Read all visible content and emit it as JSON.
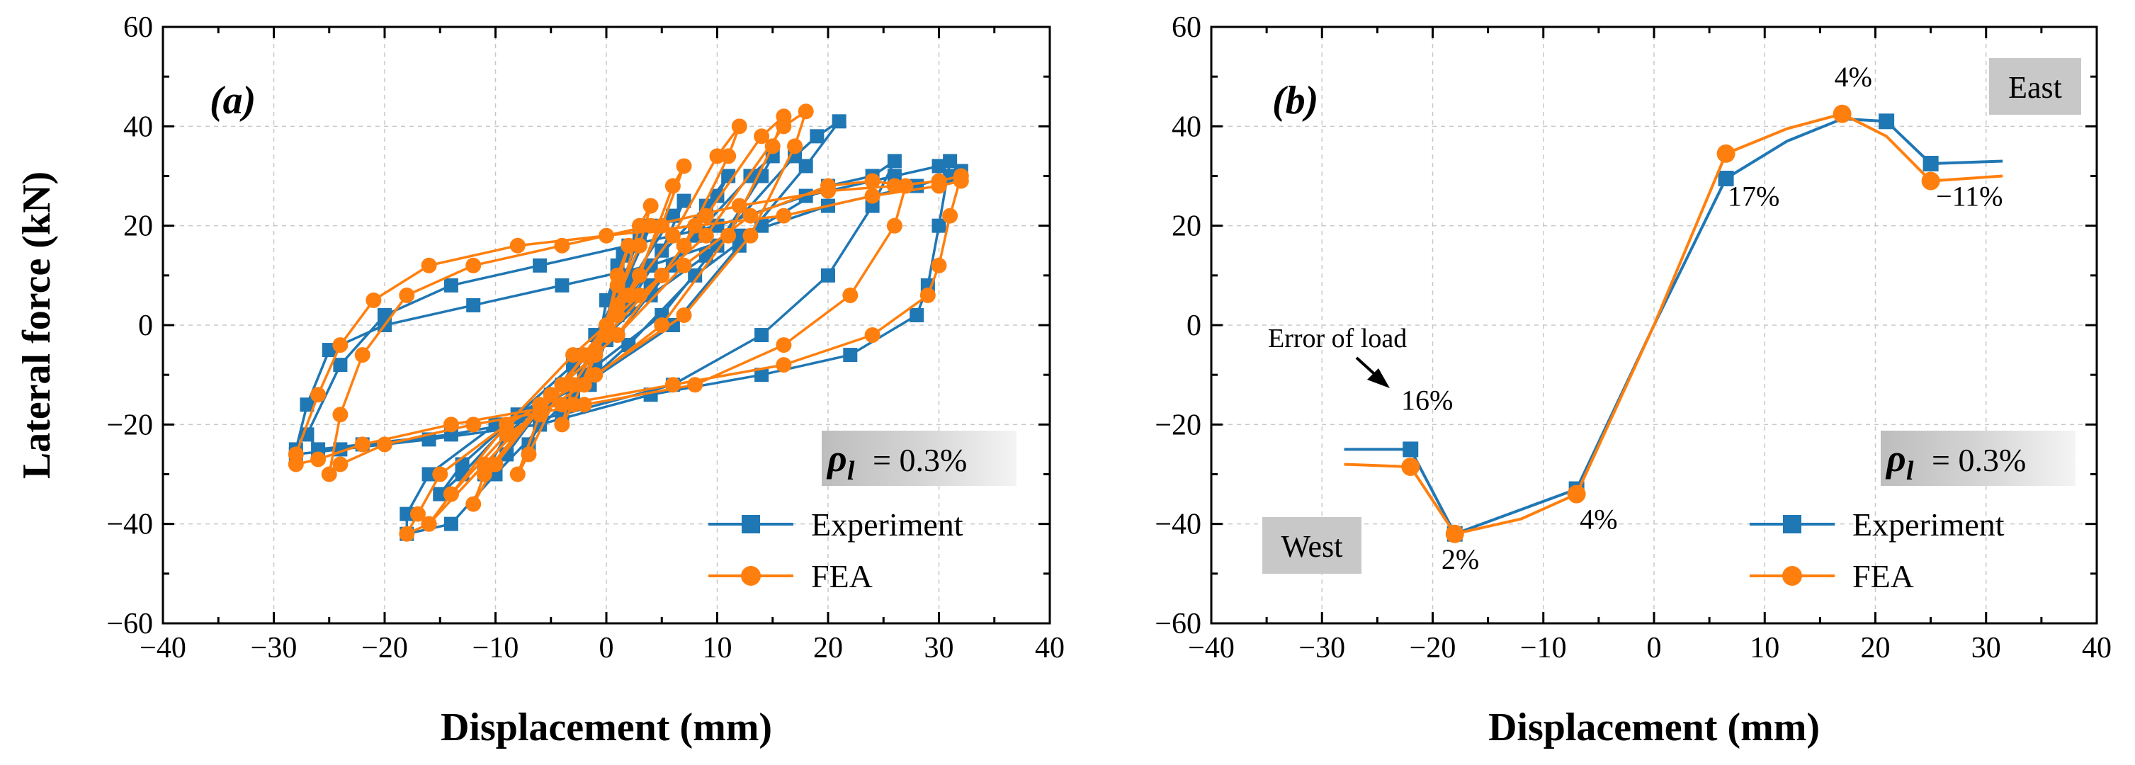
{
  "colors": {
    "experiment": "#1f77b4",
    "fea": "#ff7f0e",
    "label_box": "#c8c8c8"
  },
  "chart_data": [
    {
      "type": "line",
      "panel_label": "(a)",
      "subtype": "hysteresis",
      "xlabel": "Displacement (mm)",
      "ylabel": "Lateral force (kN)",
      "xlim": [
        -40,
        40
      ],
      "ylim": [
        -60,
        60
      ],
      "xticks": [
        "−40",
        "−30",
        "−20",
        "−10",
        "0",
        "10",
        "20",
        "30",
        "40"
      ],
      "yticks": [
        "60",
        "40",
        "20",
        "0",
        "−20",
        "−40",
        "−60"
      ],
      "grid": true,
      "rho_label": {
        "symbol": "ρ",
        "subscript": "l",
        "value": " = 0.3%"
      },
      "legend": {
        "position": "bottom-right",
        "entries": [
          "Experiment",
          "FEA"
        ]
      },
      "series": [
        {
          "name": "Experiment",
          "marker": "square",
          "points": [
            [
              0,
              0
            ],
            [
              1,
              12
            ],
            [
              1.5,
              14
            ],
            [
              0,
              5
            ],
            [
              -1,
              -8
            ],
            [
              -1.5,
              -12
            ],
            [
              0,
              -3
            ],
            [
              1,
              6
            ],
            [
              3,
              18
            ],
            [
              4,
              20
            ],
            [
              2,
              10
            ],
            [
              -1,
              -2
            ],
            [
              -3,
              -14
            ],
            [
              -4,
              -18
            ],
            [
              -2,
              -10
            ],
            [
              0,
              -2
            ],
            [
              2,
              8
            ],
            [
              6,
              22
            ],
            [
              7,
              25
            ],
            [
              5,
              15
            ],
            [
              2,
              4
            ],
            [
              -3,
              -8
            ],
            [
              -6,
              -20
            ],
            [
              -7,
              -24
            ],
            [
              -5,
              -15
            ],
            [
              -2,
              -6
            ],
            [
              1,
              2
            ],
            [
              4,
              12
            ],
            [
              9,
              24
            ],
            [
              11,
              30
            ],
            [
              10,
              26
            ],
            [
              6,
              12
            ],
            [
              1,
              -2
            ],
            [
              -4,
              -12
            ],
            [
              -9,
              -22
            ],
            [
              -11,
              -30
            ],
            [
              -9,
              -26
            ],
            [
              -5,
              -14
            ],
            [
              0,
              -2
            ],
            [
              4,
              8
            ],
            [
              8,
              18
            ],
            [
              13,
              30
            ],
            [
              15,
              34
            ],
            [
              14,
              30
            ],
            [
              10,
              16
            ],
            [
              5,
              2
            ],
            [
              -2,
              -10
            ],
            [
              -8,
              -18
            ],
            [
              -13,
              -28
            ],
            [
              -15,
              -34
            ],
            [
              -13,
              -30
            ],
            [
              -8,
              -18
            ],
            [
              -2,
              -6
            ],
            [
              4,
              6
            ],
            [
              9,
              14
            ],
            [
              17,
              34
            ],
            [
              19,
              38
            ],
            [
              21,
              41
            ],
            [
              18,
              32
            ],
            [
              12,
              16
            ],
            [
              6,
              0
            ],
            [
              -2,
              -12
            ],
            [
              -10,
              -20
            ],
            [
              -16,
              -30
            ],
            [
              -18,
              -38
            ],
            [
              -18,
              -42
            ],
            [
              -14,
              -40
            ],
            [
              -10,
              -30
            ],
            [
              -4,
              -16
            ],
            [
              2,
              -4
            ],
            [
              8,
              10
            ],
            [
              14,
              20
            ],
            [
              20,
              28
            ],
            [
              24,
              30
            ],
            [
              26,
              33
            ],
            [
              24,
              24
            ],
            [
              20,
              10
            ],
            [
              14,
              -2
            ],
            [
              6,
              -12
            ],
            [
              -4,
              -18
            ],
            [
              -14,
              -22
            ],
            [
              -22,
              -24
            ],
            [
              -26,
              -25
            ],
            [
              -27,
              -22
            ],
            [
              -24,
              -8
            ],
            [
              -20,
              2
            ],
            [
              -14,
              8
            ],
            [
              -6,
              12
            ],
            [
              2,
              16
            ],
            [
              10,
              20
            ],
            [
              18,
              26
            ],
            [
              26,
              30
            ],
            [
              30,
              32
            ],
            [
              31,
              33
            ],
            [
              30,
              20
            ],
            [
              29,
              8
            ],
            [
              28,
              2
            ],
            [
              22,
              -6
            ],
            [
              14,
              -10
            ],
            [
              4,
              -14
            ],
            [
              -6,
              -20
            ],
            [
              -16,
              -23
            ],
            [
              -24,
              -25
            ],
            [
              -28,
              -26
            ],
            [
              -28,
              -25
            ],
            [
              -27,
              -16
            ],
            [
              -25,
              -5
            ],
            [
              -20,
              0
            ],
            [
              -12,
              4
            ],
            [
              -4,
              8
            ],
            [
              4,
              12
            ],
            [
              12,
              18
            ],
            [
              20,
              24
            ],
            [
              28,
              28
            ],
            [
              31,
              30
            ],
            [
              32,
              31
            ]
          ]
        },
        {
          "name": "FEA",
          "marker": "circle",
          "points": [
            [
              0,
              0
            ],
            [
              1,
              10
            ],
            [
              2,
              16
            ],
            [
              1,
              8
            ],
            [
              -1,
              -6
            ],
            [
              -2,
              -12
            ],
            [
              -1,
              -5
            ],
            [
              1,
              4
            ],
            [
              3,
              20
            ],
            [
              4,
              24
            ],
            [
              3,
              16
            ],
            [
              0,
              0
            ],
            [
              -3,
              -16
            ],
            [
              -4,
              -20
            ],
            [
              -3,
              -12
            ],
            [
              0,
              -2
            ],
            [
              3,
              10
            ],
            [
              6,
              28
            ],
            [
              7,
              32
            ],
            [
              5,
              20
            ],
            [
              1,
              2
            ],
            [
              -4,
              -12
            ],
            [
              -7,
              -26
            ],
            [
              -8,
              -30
            ],
            [
              -6,
              -18
            ],
            [
              -2,
              -6
            ],
            [
              2,
              6
            ],
            [
              6,
              18
            ],
            [
              10,
              34
            ],
            [
              12,
              40
            ],
            [
              11,
              34
            ],
            [
              7,
              16
            ],
            [
              1,
              -2
            ],
            [
              -5,
              -14
            ],
            [
              -10,
              -28
            ],
            [
              -12,
              -36
            ],
            [
              -11,
              -30
            ],
            [
              -6,
              -16
            ],
            [
              0,
              -2
            ],
            [
              5,
              10
            ],
            [
              9,
              22
            ],
            [
              14,
              38
            ],
            [
              16,
              42
            ],
            [
              15,
              36
            ],
            [
              11,
              18
            ],
            [
              5,
              0
            ],
            [
              -2,
              -12
            ],
            [
              -9,
              -22
            ],
            [
              -14,
              -34
            ],
            [
              -16,
              -40
            ],
            [
              -14,
              -34
            ],
            [
              -9,
              -20
            ],
            [
              -3,
              -6
            ],
            [
              3,
              6
            ],
            [
              9,
              18
            ],
            [
              16,
              40
            ],
            [
              18,
              43
            ],
            [
              17,
              36
            ],
            [
              13,
              18
            ],
            [
              7,
              2
            ],
            [
              -1,
              -10
            ],
            [
              -9,
              -20
            ],
            [
              -15,
              -30
            ],
            [
              -17,
              -38
            ],
            [
              -18,
              -42
            ],
            [
              -16,
              -40
            ],
            [
              -11,
              -28
            ],
            [
              -5,
              -14
            ],
            [
              1,
              -2
            ],
            [
              7,
              12
            ],
            [
              13,
              22
            ],
            [
              20,
              28
            ],
            [
              24,
              29
            ],
            [
              27,
              28
            ],
            [
              26,
              20
            ],
            [
              22,
              6
            ],
            [
              16,
              -4
            ],
            [
              8,
              -12
            ],
            [
              -2,
              -16
            ],
            [
              -12,
              -20
            ],
            [
              -20,
              -24
            ],
            [
              -24,
              -28
            ],
            [
              -25,
              -30
            ],
            [
              -24,
              -18
            ],
            [
              -22,
              -6
            ],
            [
              -18,
              6
            ],
            [
              -12,
              12
            ],
            [
              -4,
              16
            ],
            [
              4,
              20
            ],
            [
              12,
              24
            ],
            [
              20,
              27
            ],
            [
              26,
              28
            ],
            [
              30,
              29
            ],
            [
              32,
              30
            ],
            [
              31,
              22
            ],
            [
              30,
              12
            ],
            [
              29,
              6
            ],
            [
              24,
              -2
            ],
            [
              16,
              -8
            ],
            [
              6,
              -12
            ],
            [
              -4,
              -16
            ],
            [
              -14,
              -20
            ],
            [
              -22,
              -24
            ],
            [
              -26,
              -27
            ],
            [
              -28,
              -28
            ],
            [
              -28,
              -26
            ],
            [
              -26,
              -14
            ],
            [
              -24,
              -4
            ],
            [
              -21,
              5
            ],
            [
              -16,
              12
            ],
            [
              -8,
              16
            ],
            [
              0,
              18
            ],
            [
              8,
              20
            ],
            [
              16,
              22
            ],
            [
              24,
              26
            ],
            [
              30,
              28
            ],
            [
              32,
              29
            ]
          ]
        }
      ]
    },
    {
      "type": "line",
      "panel_label": "(b)",
      "subtype": "envelope",
      "xlabel": "Displacement (mm)",
      "ylabel": "",
      "xlim": [
        -40,
        40
      ],
      "ylim": [
        -60,
        60
      ],
      "xticks": [
        "−40",
        "−30",
        "−20",
        "−10",
        "0",
        "10",
        "20",
        "30",
        "40"
      ],
      "yticks": [
        "60",
        "40",
        "20",
        "0",
        "−20",
        "−40",
        "−60"
      ],
      "grid": true,
      "rho_label": {
        "symbol": "ρ",
        "subscript": "l",
        "value": " = 0.3%"
      },
      "legend": {
        "position": "bottom-right",
        "entries": [
          "Experiment",
          "FEA"
        ]
      },
      "region_labels": {
        "west": "West",
        "east": "East"
      },
      "error_note": "Error of load",
      "series": [
        {
          "name": "Experiment",
          "marker": "square",
          "points": [
            [
              -28,
              -25
            ],
            [
              -22,
              -25
            ],
            [
              -18,
              -42
            ],
            [
              -7,
              -33
            ],
            [
              0,
              0
            ],
            [
              6.5,
              29.5
            ],
            [
              12,
              37
            ],
            [
              17,
              41.5
            ],
            [
              21,
              41
            ],
            [
              25,
              32.5
            ],
            [
              31.5,
              33
            ]
          ],
          "marker_indices": [
            1,
            2,
            3,
            5,
            8,
            9
          ]
        },
        {
          "name": "FEA",
          "marker": "circle",
          "points": [
            [
              -28,
              -28
            ],
            [
              -22,
              -28.5
            ],
            [
              -18,
              -42
            ],
            [
              -12,
              -39
            ],
            [
              -7,
              -34
            ],
            [
              0,
              0
            ],
            [
              6.5,
              34.5
            ],
            [
              12,
              39.5
            ],
            [
              17,
              42.5
            ],
            [
              21,
              38
            ],
            [
              25,
              29
            ],
            [
              31.5,
              30
            ]
          ],
          "marker_indices": [
            1,
            2,
            4,
            6,
            8,
            10
          ]
        }
      ],
      "error_labels": [
        {
          "text": "16%",
          "x": -20.5,
          "y": -17
        },
        {
          "text": "2%",
          "x": -17.5,
          "y": -49
        },
        {
          "text": "4%",
          "x": -5,
          "y": -41
        },
        {
          "text": "17%",
          "x": 9,
          "y": 24
        },
        {
          "text": "4%",
          "x": 18,
          "y": 48
        },
        {
          "text": "−11%",
          "x": 28.5,
          "y": 24
        }
      ]
    }
  ]
}
